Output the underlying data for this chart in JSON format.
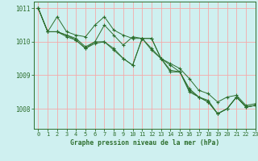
{
  "background_color": "#cff0f0",
  "grid_color": "#f5aaaa",
  "line_color": "#2d6e2d",
  "xlabel": "Graphe pression niveau de la mer (hPa)",
  "ylim": [
    1007.4,
    1011.2
  ],
  "xlim": [
    -0.5,
    23
  ],
  "yticks": [
    1008,
    1009,
    1010,
    1011
  ],
  "xticks": [
    0,
    1,
    2,
    3,
    4,
    5,
    6,
    7,
    8,
    9,
    10,
    11,
    12,
    13,
    14,
    15,
    16,
    17,
    18,
    19,
    20,
    21,
    22,
    23
  ],
  "series": [
    [
      1011.0,
      1010.3,
      1010.75,
      1010.3,
      1010.2,
      1010.15,
      1010.5,
      1010.75,
      1010.35,
      1010.2,
      1010.1,
      1010.1,
      1009.8,
      1009.5,
      1009.35,
      1009.2,
      1008.9,
      1008.55,
      1008.45,
      1008.2,
      1008.35,
      1008.4,
      1008.1,
      1008.15
    ],
    [
      1011.0,
      1010.3,
      1010.3,
      1010.2,
      1010.05,
      1009.8,
      1010.0,
      1010.5,
      1010.2,
      1009.9,
      1010.15,
      1010.1,
      1009.75,
      1009.5,
      1009.3,
      1009.1,
      1008.6,
      1008.35,
      1008.25,
      1007.85,
      1008.0,
      1008.35,
      1008.05,
      1008.1
    ],
    [
      1011.0,
      1010.3,
      1010.3,
      1010.2,
      1010.1,
      1009.85,
      1010.0,
      1010.0,
      1009.8,
      1009.5,
      1009.3,
      1010.1,
      1010.1,
      1009.5,
      1009.1,
      1009.1,
      1008.5,
      1008.35,
      1008.2,
      1007.85,
      1008.0,
      1008.35,
      1008.05,
      1008.1
    ],
    [
      1011.0,
      1010.3,
      1010.3,
      1010.15,
      1010.05,
      1009.8,
      1009.95,
      1010.0,
      1009.75,
      1009.5,
      1009.3,
      1010.1,
      1010.1,
      1009.5,
      1009.15,
      1009.1,
      1008.55,
      1008.35,
      1008.2,
      1007.85,
      1008.0,
      1008.35,
      1008.05,
      1008.1
    ]
  ]
}
